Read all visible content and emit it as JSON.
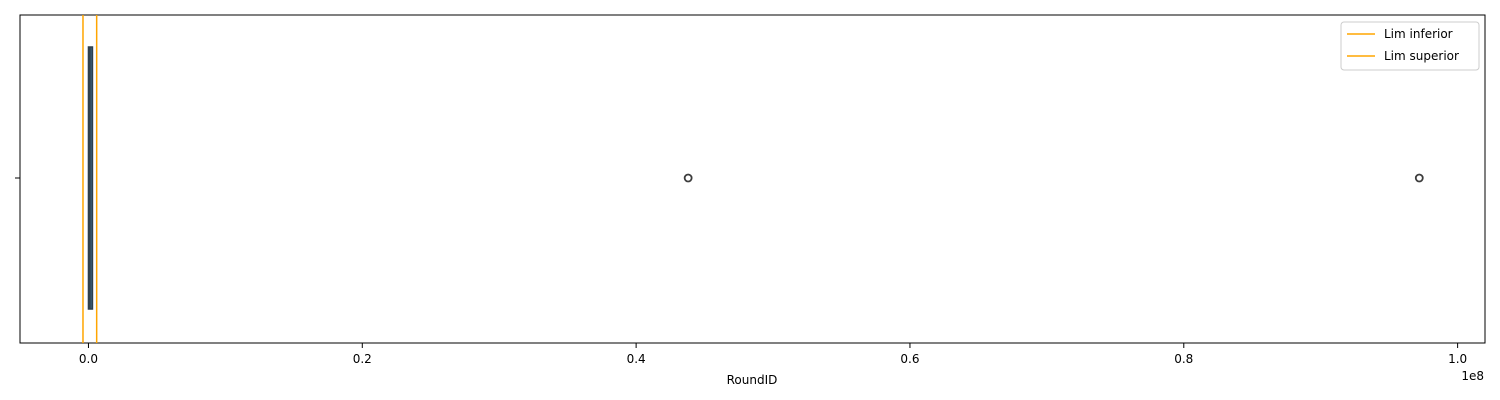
{
  "chart_data": {
    "type": "boxplot",
    "orientation": "horizontal",
    "title": "",
    "xlabel": "RoundID",
    "ylabel": "",
    "x_offset_label": "1e8",
    "x_ticks": [
      0,
      20000000,
      40000000,
      60000000,
      80000000,
      100000000
    ],
    "x_tick_labels": [
      "0.0",
      "0.2",
      "0.4",
      "0.6",
      "0.8",
      "1.0"
    ],
    "xlim": [
      -5000000,
      102000000
    ],
    "box": {
      "whisker_low": 0,
      "q1": 0,
      "median": 100000,
      "q3": 250000,
      "whisker_high": 300000,
      "outliers": [
        43800000,
        97200000
      ]
    },
    "reference_lines": [
      {
        "name": "Lim inferior",
        "value": -400000,
        "color": "#FFA500"
      },
      {
        "name": "Lim superior",
        "value": 600000,
        "color": "#FFA500"
      }
    ],
    "box_color": "#3d5f7a",
    "legend_position": "top-right",
    "grid": false
  }
}
